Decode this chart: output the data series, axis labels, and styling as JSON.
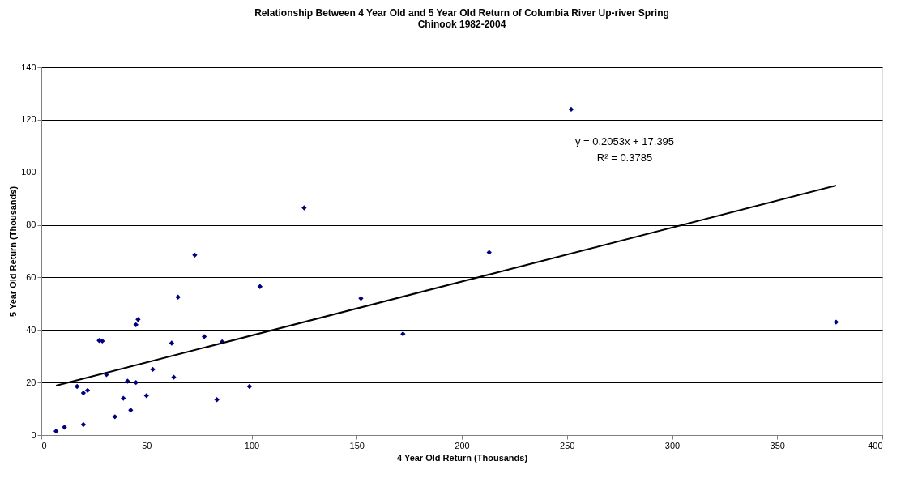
{
  "chart_data": {
    "type": "scatter",
    "title": [
      "Relationship Between 4 Year Old and 5 Year Old Return of Columbia River Up-river Spring",
      "Chinook 1982-2004"
    ],
    "xlabel": "4 Year Old Return (Thousands)",
    "ylabel": "5 Year Old Return (Thousands)",
    "xlim": [
      0,
      400
    ],
    "xticks": [
      0,
      50,
      100,
      150,
      200,
      250,
      300,
      350,
      400
    ],
    "ylim": [
      0,
      140
    ],
    "yticks": [
      0,
      20,
      40,
      60,
      80,
      100,
      120,
      140
    ],
    "grid": "y",
    "legend": false,
    "annotations": [
      "y = 0.2053x + 17.395",
      "R² = 0.3785"
    ],
    "series": [
      {
        "color": "#000080",
        "marker": "diamond",
        "x": [
          7,
          11,
          17,
          20,
          20,
          22,
          27.5,
          29,
          31,
          35,
          39,
          41,
          42.5,
          45,
          45,
          46,
          50,
          53,
          62,
          63,
          65,
          73,
          77.5,
          83.5,
          86,
          99,
          104,
          125,
          152,
          172,
          213,
          252,
          378
        ],
        "values": [
          1.5,
          3,
          18.5,
          4,
          16,
          17,
          36,
          35.8,
          23,
          7,
          14,
          20.5,
          9.5,
          20,
          42,
          44,
          15,
          25,
          35,
          22,
          52.5,
          68.5,
          37.5,
          13.5,
          35.5,
          18.5,
          56.5,
          86.5,
          52,
          38.5,
          69.5,
          124,
          43
        ]
      },
      {
        "type": "line",
        "color": "#000000",
        "marker": "none",
        "x": [
          7,
          378
        ],
        "values": [
          18.8,
          95
        ]
      }
    ]
  }
}
